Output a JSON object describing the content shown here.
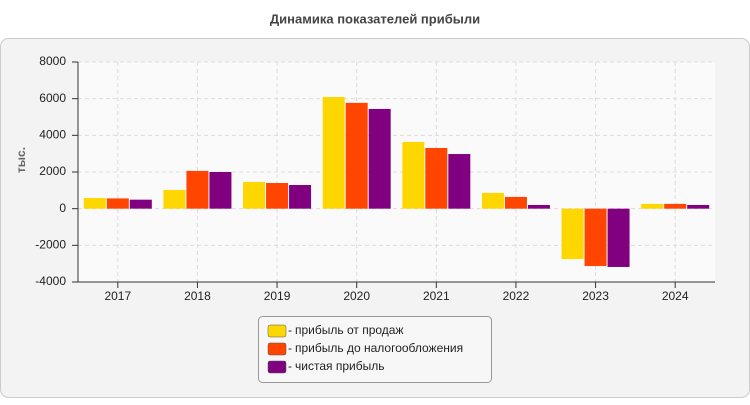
{
  "chart_data": {
    "type": "bar",
    "title": "Динамика показателей прибыли",
    "y_label": "тыс.",
    "categories": [
      "2017",
      "2018",
      "2019",
      "2020",
      "2021",
      "2022",
      "2023",
      "2024"
    ],
    "series": [
      {
        "name": "прибыль от продаж",
        "color": "#FFD700",
        "values": [
          580,
          1020,
          1460,
          6090,
          3640,
          860,
          -2750,
          260
        ]
      },
      {
        "name": "прибыль до налогообложения",
        "color": "#FF4500",
        "values": [
          560,
          2060,
          1400,
          5770,
          3310,
          640,
          -3130,
          260
        ]
      },
      {
        "name": "чистая прибыль",
        "color": "#800080",
        "values": [
          490,
          2000,
          1290,
          5440,
          2980,
          200,
          -3180,
          200
        ]
      }
    ],
    "ylim": [
      -4000,
      8000
    ],
    "yticks": [
      -4000,
      -2000,
      0,
      2000,
      4000,
      6000,
      8000
    ],
    "grid": true,
    "legend": "bottom"
  }
}
